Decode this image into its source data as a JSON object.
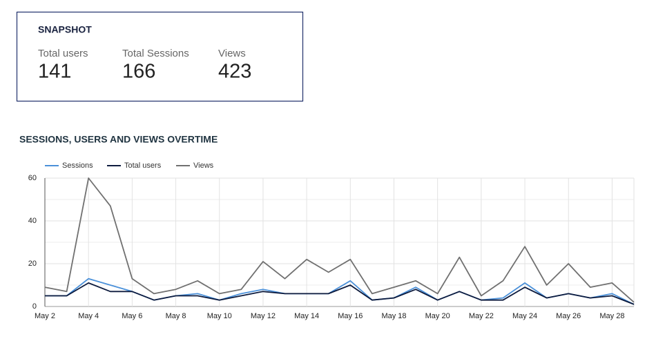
{
  "snapshot": {
    "title": "SNAPSHOT",
    "metrics": [
      {
        "label": "Total users",
        "value": 141
      },
      {
        "label": "Total Sessions",
        "value": 166
      },
      {
        "label": "Views",
        "value": 423
      }
    ]
  },
  "chart_data": {
    "type": "line",
    "title": "SESSIONS, USERS AND VIEWS OVERTIME",
    "categories": [
      "May 2",
      null,
      "May 4",
      null,
      "May 6",
      null,
      "May 8",
      null,
      "May 10",
      null,
      "May 12",
      null,
      "May 14",
      null,
      "May 16",
      null,
      "May 18",
      null,
      "May 20",
      null,
      "May 22",
      null,
      "May 24",
      null,
      "May 26",
      null,
      "May 28",
      null
    ],
    "series": [
      {
        "name": "Sessions",
        "color": "#4a90d9",
        "values": [
          5,
          5,
          13,
          10,
          7,
          3,
          5,
          6,
          3,
          6,
          8,
          6,
          6,
          6,
          12,
          3,
          4,
          9,
          3,
          7,
          3,
          4,
          11,
          4,
          6,
          4,
          6,
          1
        ]
      },
      {
        "name": "Total users",
        "color": "#0d1b3e",
        "values": [
          5,
          5,
          11,
          7,
          7,
          3,
          5,
          5,
          3,
          5,
          7,
          6,
          6,
          6,
          10,
          3,
          4,
          8,
          3,
          7,
          3,
          3,
          9,
          4,
          6,
          4,
          5,
          1
        ]
      },
      {
        "name": "Views",
        "color": "#707070",
        "values": [
          9,
          7,
          60,
          47,
          13,
          6,
          8,
          12,
          6,
          8,
          21,
          13,
          22,
          16,
          22,
          6,
          9,
          12,
          6,
          23,
          5,
          12,
          28,
          10,
          20,
          9,
          11,
          2
        ]
      }
    ],
    "ylim": [
      0,
      60
    ],
    "yticks": [
      0,
      20,
      40,
      60
    ],
    "minor_yticks": [
      10,
      30,
      50
    ],
    "grid": true,
    "legend": "top-left"
  }
}
